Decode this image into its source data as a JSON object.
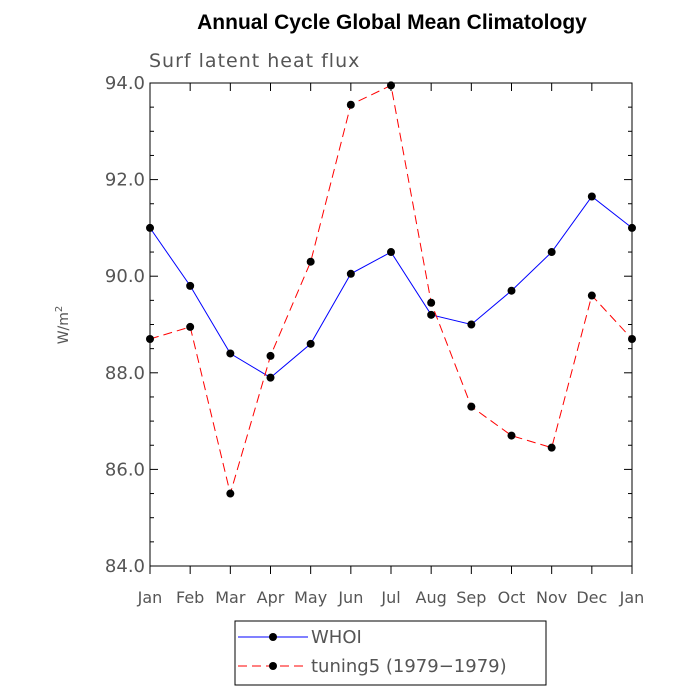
{
  "chart_data": {
    "type": "line",
    "title": "Annual Cycle Global Mean Climatology",
    "subtitle": "Surf latent heat flux",
    "ylabel": "W/m",
    "ylabel_superscript": "2",
    "xlabel": "",
    "categories": [
      "Jan",
      "Feb",
      "Mar",
      "Apr",
      "May",
      "Jun",
      "Jul",
      "Aug",
      "Sep",
      "Oct",
      "Nov",
      "Dec",
      "Jan"
    ],
    "ylim": [
      84.0,
      94.0
    ],
    "yticks": [
      "84.0",
      "86.0",
      "88.0",
      "90.0",
      "92.0",
      "94.0"
    ],
    "ytick_values": [
      84,
      86,
      88,
      90,
      92,
      94
    ],
    "series": [
      {
        "name": "WHOI",
        "color": "#0000ff",
        "dash": "solid",
        "values": [
          91.0,
          89.8,
          88.4,
          87.9,
          88.6,
          90.05,
          90.5,
          89.2,
          89.0,
          89.7,
          90.5,
          91.65,
          91.0
        ]
      },
      {
        "name": "tuning5 (1979−1979)",
        "color": "#ff0000",
        "dash": "dashed",
        "values": [
          88.7,
          88.95,
          85.5,
          88.35,
          90.3,
          93.55,
          93.95,
          89.45,
          87.3,
          86.7,
          86.45,
          89.6,
          88.7
        ]
      }
    ]
  }
}
